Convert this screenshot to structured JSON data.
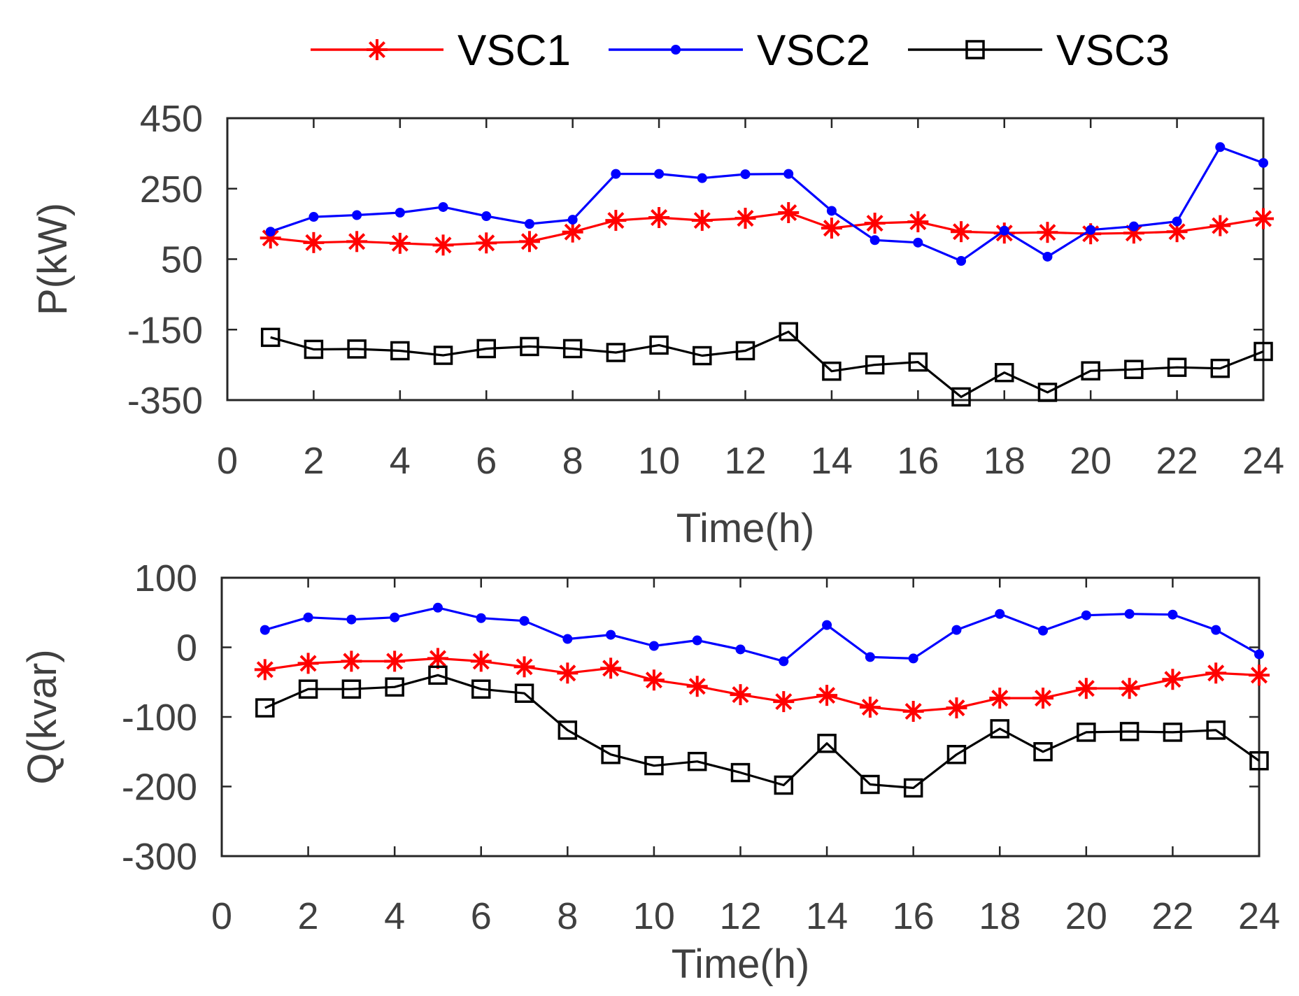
{
  "colors": {
    "VSC1": "#ff0000",
    "VSC2": "#0000ff",
    "VSC3": "#000000",
    "axis": "#262626",
    "text": "#404040"
  },
  "legend": [
    {
      "name": "VSC1",
      "marker": "asterisk"
    },
    {
      "name": "VSC2",
      "marker": "dot"
    },
    {
      "name": "VSC3",
      "marker": "square"
    }
  ],
  "chart_data": [
    {
      "type": "line",
      "id": "P",
      "ylabel": "P(kW)",
      "xlabel": "Time(h)",
      "xlim": [
        0,
        24
      ],
      "ylim": [
        -350,
        450
      ],
      "xticks": [
        0,
        2,
        4,
        6,
        8,
        10,
        12,
        14,
        16,
        18,
        20,
        22,
        24
      ],
      "yticks": [
        -350,
        -150,
        50,
        250,
        450
      ],
      "x": [
        1,
        2,
        3,
        4,
        5,
        6,
        7,
        8,
        9,
        10,
        11,
        12,
        13,
        14,
        15,
        16,
        17,
        18,
        19,
        20,
        21,
        22,
        23,
        24
      ],
      "series": [
        {
          "name": "VSC1",
          "values": [
            110,
            97,
            100,
            95,
            90,
            96,
            100,
            127,
            160,
            168,
            160,
            166,
            182,
            138,
            152,
            156,
            128,
            124,
            126,
            122,
            124,
            128,
            145,
            165
          ]
        },
        {
          "name": "VSC2",
          "values": [
            128,
            170,
            175,
            182,
            198,
            172,
            150,
            162,
            292,
            292,
            280,
            291,
            292,
            187,
            104,
            97,
            45,
            131,
            57,
            133,
            143,
            157,
            368,
            323
          ]
        },
        {
          "name": "VSC3",
          "values": [
            -172,
            -206,
            -205,
            -210,
            -223,
            -204,
            -198,
            -204,
            -215,
            -194,
            -224,
            -210,
            -156,
            -268,
            -250,
            -242,
            -341,
            -272,
            -328,
            -267,
            -263,
            -257,
            -260,
            -212
          ]
        }
      ]
    },
    {
      "type": "line",
      "id": "Q",
      "ylabel": "Q(kvar)",
      "xlabel": "Time(h)",
      "xlim": [
        0,
        24
      ],
      "ylim": [
        -300,
        100
      ],
      "xticks": [
        0,
        2,
        4,
        6,
        8,
        10,
        12,
        14,
        16,
        18,
        20,
        22,
        24
      ],
      "yticks": [
        -300,
        -200,
        -100,
        0,
        100
      ],
      "x": [
        1,
        2,
        3,
        4,
        5,
        6,
        7,
        8,
        9,
        10,
        11,
        12,
        13,
        14,
        15,
        16,
        17,
        18,
        19,
        20,
        21,
        22,
        23,
        24
      ],
      "series": [
        {
          "name": "VSC1",
          "values": [
            -32,
            -23,
            -20,
            -20,
            -16,
            -20,
            -28,
            -37,
            -30,
            -47,
            -56,
            -68,
            -78,
            -69,
            -86,
            -92,
            -87,
            -73,
            -73,
            -59,
            -59,
            -46,
            -37,
            -40
          ]
        },
        {
          "name": "VSC2",
          "values": [
            25,
            43,
            40,
            43,
            57,
            42,
            38,
            12,
            18,
            2,
            10,
            -3,
            -20,
            32,
            -14,
            -16,
            25,
            48,
            24,
            46,
            48,
            47,
            25,
            -10
          ]
        },
        {
          "name": "VSC3",
          "values": [
            -87,
            -60,
            -60,
            -57,
            -40,
            -60,
            -66,
            -119,
            -154,
            -170,
            -164,
            -180,
            -198,
            -138,
            -197,
            -202,
            -154,
            -117,
            -150,
            -122,
            -121,
            -122,
            -119,
            -163
          ]
        }
      ]
    }
  ]
}
